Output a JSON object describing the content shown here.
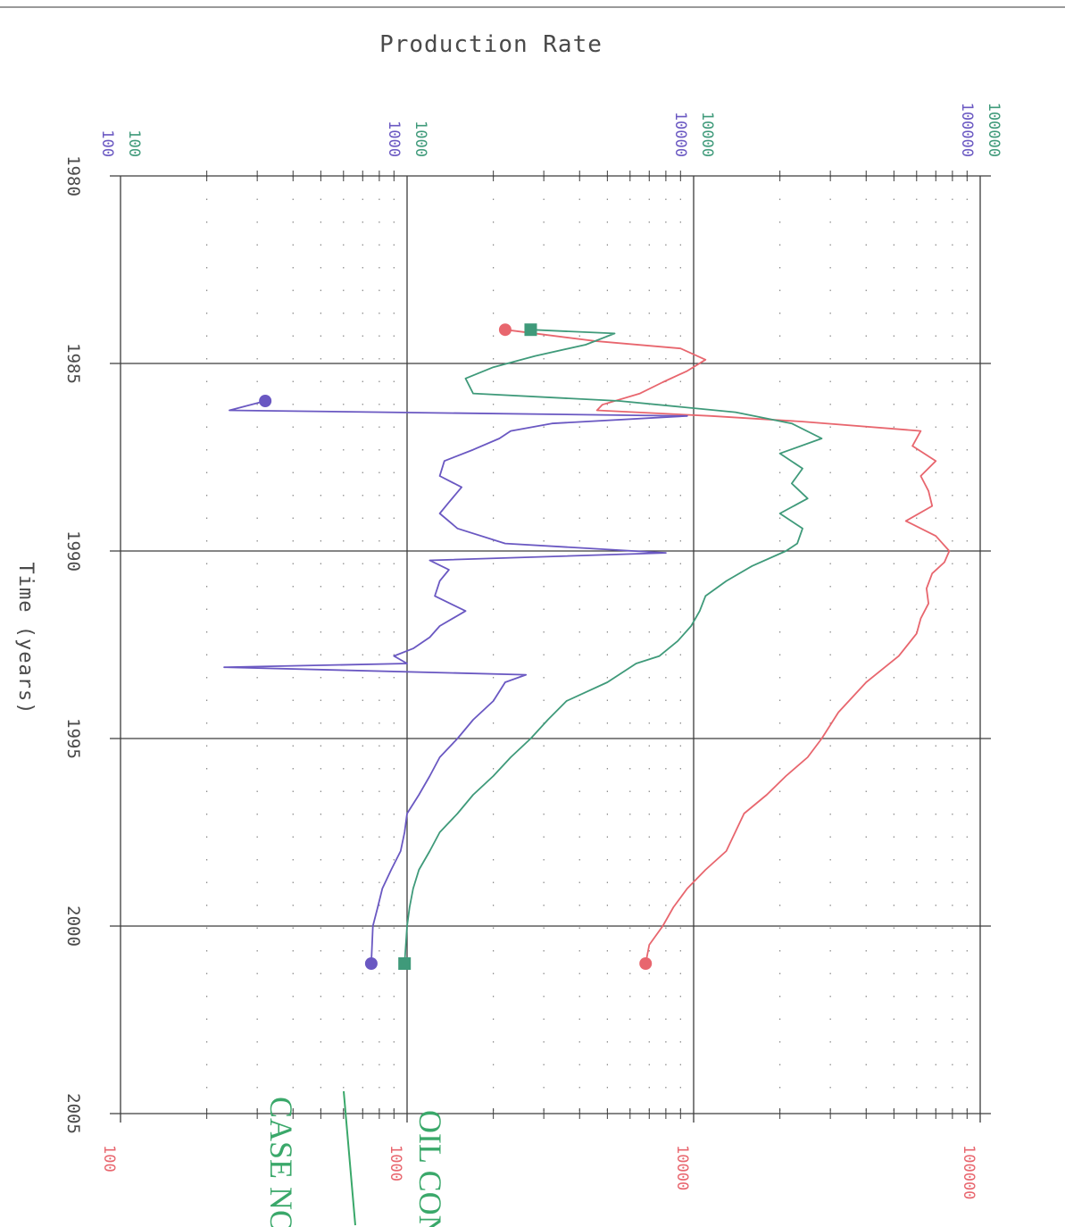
{
  "chart_data": {
    "type": "line",
    "title": "Production Rate",
    "xlabel": "Time (years)",
    "x_axis": {
      "range": [
        1980,
        2005
      ],
      "ticks": [
        "1980",
        "1985",
        "1990",
        "1995",
        "2000",
        "2005"
      ]
    },
    "y_axis": {
      "scale": "log",
      "range": [
        100,
        100000
      ],
      "top_tick_labels": {
        "green": [
          "100",
          "1000",
          "10000",
          "100000"
        ],
        "purple": [
          "100",
          "1000",
          "10000",
          "100000"
        ]
      },
      "bottom_tick_labels": {
        "red": [
          "100",
          "1000",
          "10000",
          "100000"
        ]
      }
    },
    "grid": true,
    "series": [
      {
        "color": "#e8666e",
        "x": [
          1984.1,
          1984.4,
          1984.6,
          1984.9,
          1985.2,
          1985.5,
          1985.8,
          1986.1,
          1986.25,
          1986.4,
          1986.55,
          1986.8,
          1987.2,
          1987.6,
          1988.0,
          1988.4,
          1988.8,
          1989.2,
          1989.6,
          1990.0,
          1990.3,
          1990.6,
          1991.0,
          1991.4,
          1991.8,
          1992.2,
          1992.8,
          1993.5,
          1994.3,
          1995.0,
          1995.5,
          1996.0,
          1996.5,
          1997.0,
          1998.0,
          1998.5,
          1999.0,
          1999.5,
          2000.0,
          2000.5,
          2001.0
        ],
        "y": [
          2200,
          4500,
          9000,
          11000,
          9500,
          7800,
          6500,
          4800,
          4600,
          11500,
          24000,
          62000,
          58000,
          70000,
          62000,
          66000,
          68000,
          55000,
          70000,
          78000,
          75000,
          68000,
          65000,
          66000,
          62000,
          60000,
          52000,
          40000,
          32000,
          28000,
          25000,
          21000,
          18000,
          15000,
          13000,
          11000,
          9500,
          8500,
          7800,
          7000,
          6800
        ]
      },
      {
        "color": "#3f9a7a",
        "x": [
          1984.1,
          1984.2,
          1984.5,
          1984.8,
          1985.1,
          1985.4,
          1985.8,
          1986.0,
          1986.3,
          1986.6,
          1987.0,
          1987.4,
          1987.8,
          1988.2,
          1988.6,
          1989.0,
          1989.4,
          1989.8,
          1990.0,
          1990.4,
          1990.8,
          1991.2,
          1991.6,
          1992.0,
          1992.4,
          1992.8,
          1993.0,
          1993.5,
          1994.0,
          1994.5,
          1995.0,
          1995.5,
          1996.0,
          1996.5,
          1997.0,
          1997.5,
          1998.0,
          1998.5,
          1999.0,
          1999.5,
          2000.0,
          2001.0
        ],
        "y": [
          2700,
          5300,
          4200,
          2800,
          2000,
          1600,
          1700,
          5500,
          14000,
          22000,
          28000,
          20000,
          24000,
          22000,
          25000,
          20000,
          24000,
          23000,
          21000,
          16000,
          13000,
          11000,
          10500,
          9800,
          8800,
          7600,
          6300,
          5000,
          3600,
          3100,
          2700,
          2300,
          2000,
          1700,
          1500,
          1300,
          1200,
          1100,
          1050,
          1020,
          1000,
          980
        ]
      },
      {
        "color": "#6a58c2",
        "x": [
          1986.0,
          1986.25,
          1986.4,
          1986.6,
          1986.8,
          1987.0,
          1987.3,
          1987.6,
          1988.0,
          1988.3,
          1988.7,
          1989.0,
          1989.4,
          1989.8,
          1990.05,
          1990.25,
          1990.5,
          1990.8,
          1991.2,
          1991.6,
          1992.0,
          1992.3,
          1992.6,
          1992.8,
          1993.0,
          1993.1,
          1993.3,
          1993.5,
          1994.0,
          1994.5,
          1995.0,
          1995.5,
          1996.0,
          1996.5,
          1997.0,
          1997.5,
          1998.0,
          1998.5,
          1999.0,
          1999.5,
          2000.0,
          2001.0
        ],
        "y": [
          320,
          240,
          9500,
          3200,
          2300,
          2100,
          1700,
          1350,
          1300,
          1550,
          1400,
          1300,
          1500,
          2200,
          8000,
          1200,
          1400,
          1300,
          1250,
          1600,
          1300,
          1200,
          1050,
          900,
          1000,
          230,
          2600,
          2200,
          2000,
          1700,
          1500,
          1300,
          1200,
          1100,
          1000,
          980,
          950,
          880,
          820,
          790,
          760,
          750
        ]
      }
    ],
    "end_markers": [
      {
        "color": "#e8666e",
        "shape": "circle",
        "x": 1984.1,
        "y": 2200
      },
      {
        "color": "#3f9a7a",
        "shape": "square",
        "x": 1984.1,
        "y": 2700
      },
      {
        "color": "#6a58c2",
        "shape": "circle",
        "x": 1986.0,
        "y": 320
      },
      {
        "color": "#6a58c2",
        "shape": "circle",
        "x": 2001.0,
        "y": 750
      },
      {
        "color": "#3f9a7a",
        "shape": "square",
        "x": 2001.0,
        "y": 980
      },
      {
        "color": "#e8666e",
        "shape": "circle",
        "x": 2001.0,
        "y": 6800
      }
    ],
    "annotations": {
      "stamp_left": "CASE NO.",
      "stamp_right": "OIL CON"
    }
  },
  "colors": {
    "red": "#e8666e",
    "green": "#3f9a7a",
    "purple": "#6a58c2",
    "grid": "#3c3c3c",
    "text": "#4a4a4a"
  }
}
